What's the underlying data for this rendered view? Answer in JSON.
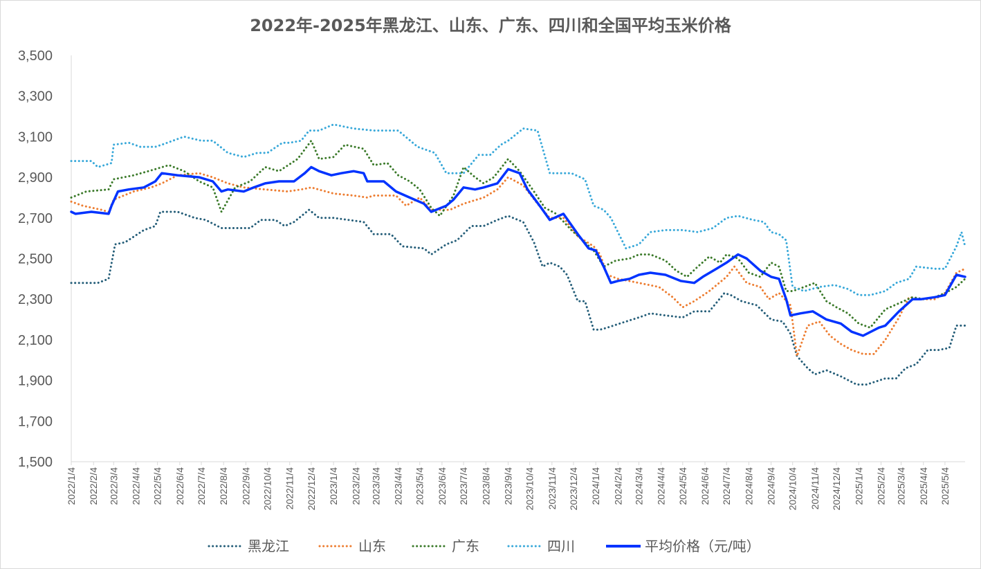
{
  "chart_data": {
    "type": "line",
    "title": "2022年-2025年黑龙江、山东、广东、四川和全国平均玉米价格",
    "xlabel": "",
    "ylabel": "",
    "ylim": [
      1500,
      3500
    ],
    "yticks": [
      "1,500",
      "1,700",
      "1,900",
      "2,100",
      "2,300",
      "2,500",
      "2,700",
      "2,900",
      "3,100",
      "3,300",
      "3,500"
    ],
    "xlim": [
      "2022/1/4",
      "2025/6/1"
    ],
    "xticks": [
      "2022/1/4",
      "2022/2/4",
      "2022/3/4",
      "2022/4/4",
      "2022/5/4",
      "2022/6/4",
      "2022/7/4",
      "2022/8/4",
      "2022/9/4",
      "2022/10/4",
      "2022/11/4",
      "2022/12/4",
      "2023/1/4",
      "2023/2/4",
      "2023/3/4",
      "2023/4/4",
      "2023/5/4",
      "2023/6/4",
      "2023/7/4",
      "2023/8/4",
      "2023/9/4",
      "2023/10/4",
      "2023/11/4",
      "2023/12/4",
      "2024/1/4",
      "2024/2/4",
      "2024/3/4",
      "2024/4/4",
      "2024/5/4",
      "2024/6/4",
      "2024/7/4",
      "2024/8/4",
      "2024/9/4",
      "2024/10/4",
      "2024/11/4",
      "2024/12/4",
      "2025/1/4",
      "2025/2/4",
      "2025/3/4",
      "2025/4/4",
      "2025/5/4"
    ],
    "grid": false,
    "legend_position": "bottom",
    "series": [
      {
        "name": "黑龙江",
        "color": "#255e79",
        "style": "dotted",
        "x": [
          "2022/1/4",
          "2022/2/10",
          "2022/2/25",
          "2022/3/6",
          "2022/3/20",
          "2022/4/15",
          "2022/5/1",
          "2022/5/8",
          "2022/6/1",
          "2022/6/25",
          "2022/7/10",
          "2022/8/1",
          "2022/8/15",
          "2022/9/10",
          "2022/9/25",
          "2022/10/15",
          "2022/10/28",
          "2022/11/10",
          "2022/12/1",
          "2022/12/15",
          "2023/1/4",
          "2023/2/15",
          "2023/3/1",
          "2023/3/25",
          "2023/4/10",
          "2023/5/10",
          "2023/5/20",
          "2023/6/10",
          "2023/6/25",
          "2023/7/15",
          "2023/8/1",
          "2023/8/20",
          "2023/9/4",
          "2023/9/25",
          "2023/10/10",
          "2023/10/22",
          "2023/11/1",
          "2023/11/15",
          "2023/11/25",
          "2023/12/10",
          "2023/12/20",
          "2024/1/1",
          "2024/1/10",
          "2024/1/20",
          "2024/2/15",
          "2024/3/4",
          "2024/3/20",
          "2024/4/10",
          "2024/5/4",
          "2024/5/20",
          "2024/6/10",
          "2024/7/1",
          "2024/7/10",
          "2024/7/25",
          "2024/8/15",
          "2024/9/4",
          "2024/9/20",
          "2024/10/1",
          "2024/10/10",
          "2024/10/25",
          "2024/11/4",
          "2024/11/20",
          "2024/12/10",
          "2025/1/1",
          "2025/1/15",
          "2025/2/10",
          "2025/2/25",
          "2025/3/10",
          "2025/3/25",
          "2025/4/10",
          "2025/4/25",
          "2025/5/10",
          "2025/5/20",
          "2025/6/1"
        ],
        "values": [
          2380,
          2380,
          2400,
          2570,
          2580,
          2640,
          2660,
          2730,
          2730,
          2700,
          2690,
          2650,
          2650,
          2650,
          2690,
          2690,
          2660,
          2680,
          2740,
          2700,
          2700,
          2680,
          2620,
          2620,
          2560,
          2550,
          2520,
          2570,
          2590,
          2660,
          2660,
          2690,
          2710,
          2680,
          2580,
          2460,
          2480,
          2460,
          2420,
          2290,
          2290,
          2150,
          2150,
          2160,
          2190,
          2210,
          2230,
          2220,
          2210,
          2240,
          2240,
          2330,
          2320,
          2290,
          2270,
          2200,
          2190,
          2130,
          2020,
          1960,
          1930,
          1950,
          1920,
          1880,
          1880,
          1910,
          1910,
          1960,
          1980,
          2050,
          2050,
          2060,
          2170,
          2170
        ]
      },
      {
        "name": "山东",
        "color": "#ed7d31",
        "style": "dotted",
        "x": [
          "2022/1/4",
          "2022/1/20",
          "2022/2/15",
          "2022/2/25",
          "2022/3/4",
          "2022/4/1",
          "2022/4/25",
          "2022/5/10",
          "2022/6/1",
          "2022/7/1",
          "2022/7/20",
          "2022/8/10",
          "2022/9/1",
          "2022/10/1",
          "2022/11/1",
          "2022/11/20",
          "2022/12/4",
          "2023/1/4",
          "2023/2/1",
          "2023/2/20",
          "2023/3/1",
          "2023/4/1",
          "2023/4/15",
          "2023/5/4",
          "2023/5/20",
          "2023/6/15",
          "2023/7/4",
          "2023/8/1",
          "2023/8/20",
          "2023/9/4",
          "2023/9/25",
          "2023/10/15",
          "2023/11/1",
          "2023/11/20",
          "2023/12/10",
          "2024/1/1",
          "2024/1/10",
          "2024/1/20",
          "2024/2/4",
          "2024/3/4",
          "2024/4/1",
          "2024/4/20",
          "2024/5/4",
          "2024/5/20",
          "2024/6/10",
          "2024/7/4",
          "2024/7/15",
          "2024/8/1",
          "2024/8/20",
          "2024/9/1",
          "2024/9/15",
          "2024/10/1",
          "2024/10/10",
          "2024/10/25",
          "2024/11/10",
          "2024/11/25",
          "2024/12/10",
          "2024/12/25",
          "2025/1/10",
          "2025/1/25",
          "2025/2/10",
          "2025/3/1",
          "2025/3/15",
          "2025/4/1",
          "2025/4/20",
          "2025/5/4",
          "2025/5/20",
          "2025/6/1"
        ],
        "values": [
          2780,
          2760,
          2740,
          2730,
          2790,
          2830,
          2850,
          2870,
          2910,
          2920,
          2900,
          2870,
          2850,
          2840,
          2830,
          2840,
          2850,
          2820,
          2810,
          2800,
          2810,
          2810,
          2760,
          2800,
          2740,
          2740,
          2770,
          2800,
          2840,
          2900,
          2860,
          2770,
          2700,
          2700,
          2610,
          2560,
          2520,
          2420,
          2400,
          2380,
          2360,
          2310,
          2260,
          2290,
          2340,
          2410,
          2460,
          2380,
          2360,
          2300,
          2330,
          2270,
          2020,
          2170,
          2190,
          2120,
          2080,
          2050,
          2030,
          2030,
          2100,
          2210,
          2310,
          2300,
          2300,
          2330,
          2430,
          2450
        ]
      },
      {
        "name": "广东",
        "color": "#3b7a2a",
        "style": "dotted",
        "x": [
          "2022/1/4",
          "2022/1/25",
          "2022/2/25",
          "2022/3/4",
          "2022/4/1",
          "2022/5/1",
          "2022/5/20",
          "2022/6/10",
          "2022/7/1",
          "2022/7/20",
          "2022/8/1",
          "2022/8/20",
          "2022/9/10",
          "2022/10/1",
          "2022/10/20",
          "2022/11/15",
          "2022/12/4",
          "2022/12/15",
          "2023/1/4",
          "2023/1/20",
          "2023/2/15",
          "2023/3/1",
          "2023/3/20",
          "2023/4/4",
          "2023/4/20",
          "2023/5/4",
          "2023/5/20",
          "2023/6/1",
          "2023/6/20",
          "2023/7/4",
          "2023/7/20",
          "2023/8/1",
          "2023/8/15",
          "2023/9/4",
          "2023/9/20",
          "2023/10/10",
          "2023/10/25",
          "2023/11/10",
          "2023/12/1",
          "2023/12/20",
          "2024/1/1",
          "2024/1/15",
          "2024/2/1",
          "2024/2/20",
          "2024/3/4",
          "2024/3/20",
          "2024/4/10",
          "2024/4/25",
          "2024/5/10",
          "2024/5/25",
          "2024/6/10",
          "2024/6/25",
          "2024/7/4",
          "2024/7/20",
          "2024/8/4",
          "2024/8/20",
          "2024/9/4",
          "2024/9/15",
          "2024/9/25",
          "2024/10/4",
          "2024/10/20",
          "2024/11/4",
          "2024/11/20",
          "2024/12/4",
          "2024/12/20",
          "2025/1/4",
          "2025/1/20",
          "2025/2/10",
          "2025/3/1",
          "2025/3/20",
          "2025/4/4",
          "2025/4/20",
          "2025/5/4",
          "2025/5/20",
          "2025/6/1"
        ],
        "values": [
          2800,
          2830,
          2840,
          2890,
          2910,
          2940,
          2960,
          2930,
          2880,
          2850,
          2730,
          2850,
          2880,
          2950,
          2930,
          2990,
          3080,
          2990,
          3000,
          3060,
          3040,
          2960,
          2970,
          2910,
          2880,
          2840,
          2750,
          2710,
          2810,
          2950,
          2900,
          2870,
          2900,
          2990,
          2930,
          2830,
          2750,
          2720,
          2640,
          2580,
          2540,
          2460,
          2490,
          2500,
          2520,
          2520,
          2490,
          2440,
          2410,
          2460,
          2510,
          2480,
          2520,
          2500,
          2430,
          2410,
          2480,
          2460,
          2340,
          2340,
          2360,
          2380,
          2290,
          2260,
          2230,
          2180,
          2160,
          2250,
          2280,
          2310,
          2300,
          2310,
          2330,
          2360,
          2400
        ]
      },
      {
        "name": "四川",
        "color": "#38a8d9",
        "style": "dotted",
        "x": [
          "2022/1/4",
          "2022/2/1",
          "2022/2/10",
          "2022/3/1",
          "2022/3/4",
          "2022/3/25",
          "2022/4/10",
          "2022/5/1",
          "2022/5/10",
          "2022/6/10",
          "2022/7/4",
          "2022/7/20",
          "2022/8/10",
          "2022/9/1",
          "2022/9/20",
          "2022/10/4",
          "2022/10/25",
          "2022/11/4",
          "2022/11/20",
          "2022/12/1",
          "2022/12/15",
          "2023/1/4",
          "2023/2/1",
          "2023/3/1",
          "2023/3/15",
          "2023/4/4",
          "2023/5/1",
          "2023/5/25",
          "2023/6/10",
          "2023/6/25",
          "2023/7/4",
          "2023/7/25",
          "2023/8/10",
          "2023/8/25",
          "2023/9/4",
          "2023/9/25",
          "2023/10/15",
          "2023/11/1",
          "2023/11/20",
          "2023/12/1",
          "2023/12/20",
          "2024/1/1",
          "2024/1/15",
          "2024/1/25",
          "2024/2/15",
          "2024/3/4",
          "2024/3/20",
          "2024/4/10",
          "2024/5/4",
          "2024/5/25",
          "2024/6/15",
          "2024/7/4",
          "2024/7/20",
          "2024/8/10",
          "2024/8/25",
          "2024/9/4",
          "2024/9/15",
          "2024/9/25",
          "2024/10/4",
          "2024/10/20",
          "2024/11/10",
          "2024/12/1",
          "2024/12/20",
          "2025/1/4",
          "2025/1/20",
          "2025/2/10",
          "2025/2/25",
          "2025/3/15",
          "2025/3/25",
          "2025/4/20",
          "2025/5/4",
          "2025/5/20",
          "2025/5/27",
          "2025/6/1"
        ],
        "values": [
          2980,
          2980,
          2950,
          2970,
          3060,
          3070,
          3050,
          3050,
          3060,
          3100,
          3080,
          3080,
          3020,
          3000,
          3020,
          3020,
          3070,
          3070,
          3080,
          3130,
          3130,
          3160,
          3140,
          3130,
          3130,
          3130,
          3050,
          3020,
          2920,
          2920,
          2920,
          3010,
          3010,
          3060,
          3080,
          3140,
          3130,
          2920,
          2920,
          2920,
          2890,
          2760,
          2740,
          2700,
          2550,
          2570,
          2630,
          2640,
          2640,
          2630,
          2650,
          2700,
          2710,
          2690,
          2680,
          2630,
          2620,
          2590,
          2360,
          2340,
          2360,
          2370,
          2350,
          2320,
          2320,
          2340,
          2380,
          2400,
          2460,
          2450,
          2450,
          2560,
          2630,
          2560
        ]
      },
      {
        "name": "平均价格（元/吨）",
        "color": "#0033ff",
        "style": "solid",
        "x": [
          "2022/1/4",
          "2022/1/10",
          "2022/2/1",
          "2022/2/25",
          "2022/3/1",
          "2022/3/10",
          "2022/3/25",
          "2022/4/15",
          "2022/5/1",
          "2022/5/10",
          "2022/6/1",
          "2022/7/1",
          "2022/7/20",
          "2022/8/1",
          "2022/8/10",
          "2022/9/1",
          "2022/9/15",
          "2022/10/1",
          "2022/10/20",
          "2022/11/10",
          "2022/11/25",
          "2022/12/4",
          "2022/12/15",
          "2023/1/1",
          "2023/1/15",
          "2023/2/1",
          "2023/2/15",
          "2023/2/20",
          "2023/3/15",
          "2023/4/1",
          "2023/4/20",
          "2023/5/10",
          "2023/5/20",
          "2023/6/10",
          "2023/6/20",
          "2023/7/4",
          "2023/7/20",
          "2023/8/1",
          "2023/8/20",
          "2023/9/4",
          "2023/9/20",
          "2023/10/1",
          "2023/10/20",
          "2023/11/1",
          "2023/11/20",
          "2023/12/10",
          "2023/12/25",
          "2024/1/4",
          "2024/1/15",
          "2024/1/25",
          "2024/2/4",
          "2024/2/20",
          "2024/3/4",
          "2024/3/20",
          "2024/4/10",
          "2024/5/1",
          "2024/5/20",
          "2024/6/1",
          "2024/6/20",
          "2024/7/4",
          "2024/7/20",
          "2024/8/1",
          "2024/8/20",
          "2024/9/4",
          "2024/9/15",
          "2024/9/25",
          "2024/10/1",
          "2024/10/15",
          "2024/11/1",
          "2024/11/20",
          "2024/12/10",
          "2024/12/25",
          "2025/1/10",
          "2025/2/1",
          "2025/2/10",
          "2025/3/1",
          "2025/3/20",
          "2025/4/1",
          "2025/4/20",
          "2025/5/4",
          "2025/5/20",
          "2025/6/1"
        ],
        "values": [
          2730,
          2720,
          2730,
          2720,
          2760,
          2830,
          2840,
          2850,
          2880,
          2920,
          2910,
          2900,
          2880,
          2830,
          2840,
          2830,
          2850,
          2870,
          2880,
          2880,
          2920,
          2950,
          2930,
          2910,
          2920,
          2930,
          2920,
          2880,
          2880,
          2830,
          2800,
          2770,
          2730,
          2760,
          2790,
          2850,
          2840,
          2850,
          2870,
          2940,
          2920,
          2840,
          2750,
          2690,
          2720,
          2620,
          2550,
          2540,
          2460,
          2380,
          2390,
          2400,
          2420,
          2430,
          2420,
          2390,
          2380,
          2410,
          2450,
          2480,
          2520,
          2500,
          2440,
          2410,
          2400,
          2300,
          2220,
          2230,
          2240,
          2200,
          2180,
          2140,
          2120,
          2160,
          2170,
          2240,
          2300,
          2300,
          2310,
          2320,
          2420,
          2410
        ]
      }
    ]
  }
}
